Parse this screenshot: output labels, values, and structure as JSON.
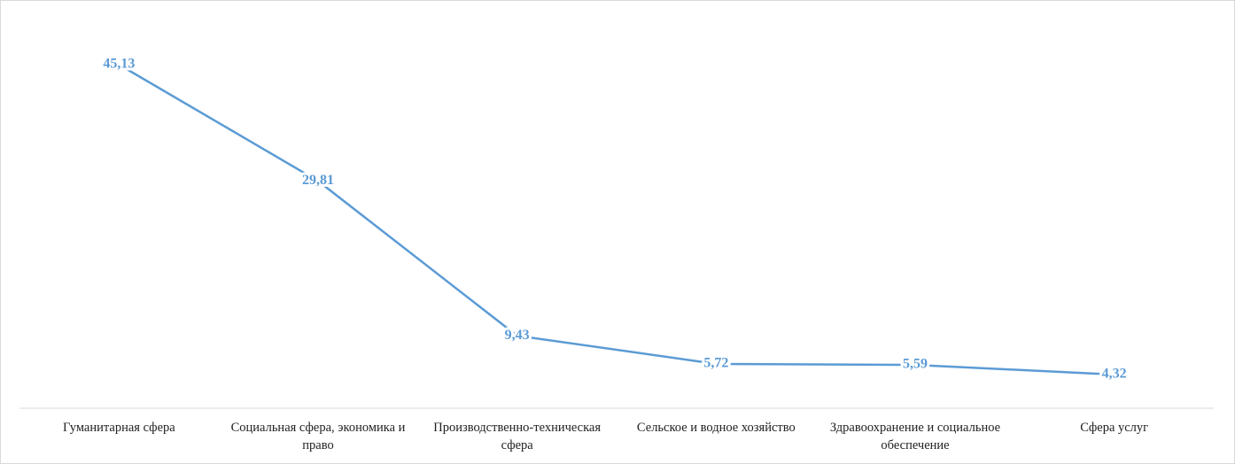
{
  "chart_data": {
    "type": "line",
    "categories": [
      "Гуманитарная  сфера",
      "Социальная  сфера, экономика и право",
      "Производственно-техническая сфера",
      "Сельское и водное хозяйство",
      "Здравоохранение и социальное обеспечение",
      "Сфера услуг"
    ],
    "values": [
      45.13,
      29.81,
      9.43,
      5.72,
      5.59,
      4.32
    ],
    "value_labels": [
      "45,13",
      "29,81",
      "9,43",
      "5,72",
      "5,59",
      "4,32"
    ],
    "color": "#5b9bd5"
  }
}
